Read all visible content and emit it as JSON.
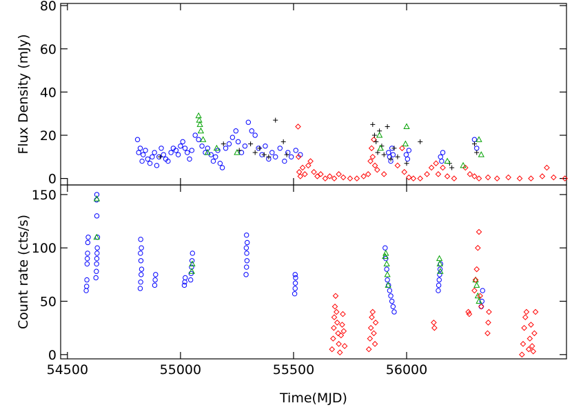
{
  "chart_data": [
    {
      "type": "scatter",
      "ylabel": "Flux Density (mJy)",
      "xlim": [
        54470,
        56707
      ],
      "ylim": [
        -3,
        81
      ],
      "yticks": [
        0,
        20,
        40,
        60,
        80
      ],
      "series": [
        {
          "color": "#0000ff",
          "marker": "circle",
          "x": [
            54810,
            54815,
            54822,
            54830,
            54835,
            54845,
            54855,
            54865,
            54875,
            54885,
            54895,
            54905,
            54915,
            54925,
            54935,
            54945,
            54958,
            54968,
            54980,
            54990,
            55000,
            55010,
            55020,
            55030,
            55040,
            55050,
            55065,
            55080,
            55095,
            55110,
            55120,
            55135,
            55145,
            55155,
            55165,
            55175,
            55185,
            55200,
            55215,
            55230,
            55245,
            55255,
            55270,
            55285,
            55300,
            55315,
            55330,
            55345,
            55360,
            55375,
            55390,
            55405,
            55420,
            55440,
            55460,
            55475,
            55490,
            55510,
            55530,
            55920,
            55925,
            55930,
            55935,
            55940,
            55998,
            56004,
            56010,
            56150,
            56155,
            56160,
            56300,
            56310
          ],
          "values": [
            18,
            12,
            14,
            8,
            11,
            13,
            9,
            7,
            10,
            12,
            6,
            10,
            14,
            11,
            9,
            8,
            12,
            14,
            13,
            11,
            15,
            17,
            14,
            12,
            9,
            13,
            20,
            18,
            15,
            12,
            14,
            11,
            8,
            10,
            13,
            7,
            5,
            14,
            16,
            19,
            22,
            17,
            12,
            15,
            26,
            22,
            20,
            14,
            11,
            15,
            9,
            12,
            10,
            14,
            8,
            12,
            10,
            13,
            11,
            12,
            10,
            8,
            14,
            11,
            11,
            9,
            13,
            10,
            8,
            12,
            18,
            14
          ]
        },
        {
          "color": "#ff0000",
          "marker": "diamond",
          "x": [
            55520,
            55522,
            55525,
            55530,
            55540,
            55550,
            55565,
            55575,
            55590,
            55605,
            55620,
            55640,
            55660,
            55680,
            55700,
            55720,
            55750,
            55780,
            55810,
            55830,
            55840,
            55845,
            55850,
            55855,
            55860,
            55870,
            55900,
            55960,
            55980,
            55990,
            56010,
            56030,
            56060,
            56090,
            56110,
            56130,
            56140,
            56160,
            56180,
            56210,
            56260,
            56280,
            56300,
            56320,
            56360,
            56400,
            56450,
            56500,
            56550,
            56600,
            56620,
            56650,
            56700
          ],
          "values": [
            24,
            10,
            3,
            1,
            5,
            2,
            6,
            8,
            3,
            1,
            2,
            0,
            1,
            0,
            2,
            0.5,
            0,
            0,
            1,
            2,
            8,
            14,
            10,
            18,
            6,
            4,
            2,
            6,
            14,
            3,
            0.5,
            0,
            0,
            2,
            5,
            7,
            2,
            5,
            1,
            0,
            5,
            2,
            1,
            0,
            0.5,
            0,
            0.5,
            0,
            0,
            1,
            5,
            0.5,
            0
          ]
        },
        {
          "color": "#000000",
          "marker": "plus",
          "x": [
            54910,
            55190,
            55260,
            55310,
            55330,
            55350,
            55370,
            55390,
            55420,
            55455,
            55470,
            55850,
            55858,
            55865,
            55872,
            55880,
            55890,
            55900,
            55915,
            55930,
            55945,
            55960,
            56000,
            56060,
            56190,
            56200,
            56300,
            56310
          ],
          "values": [
            10,
            16,
            13,
            16,
            12,
            14,
            11,
            10,
            27,
            17,
            11,
            25,
            20,
            17,
            12,
            22,
            15,
            11,
            24,
            9,
            14,
            10,
            7,
            17,
            7,
            5,
            16,
            12
          ]
        },
        {
          "color": "#00a000",
          "marker": "triangle",
          "x": [
            55080,
            55083,
            55086,
            55090,
            55100,
            55120,
            55160,
            55250,
            55880,
            55885,
            55995,
            56000,
            56180,
            56250,
            56320,
            56330
          ],
          "values": [
            29,
            27,
            25,
            22,
            18,
            12,
            14,
            12,
            20,
            14,
            16,
            24,
            8,
            6,
            18,
            11
          ]
        }
      ]
    },
    {
      "type": "scatter",
      "ylabel": "Count rate (cts/s)",
      "xlabel": "Time(MJD)",
      "xlim": [
        54470,
        56707
      ],
      "ylim": [
        -4,
        159
      ],
      "xticks": [
        54500,
        55000,
        55500,
        56000
      ],
      "yticks": [
        0,
        50,
        100,
        150
      ],
      "series": [
        {
          "color": "#0000ff",
          "marker": "circle",
          "x": [
            54583,
            54585,
            54586,
            54587,
            54588,
            54589,
            54590,
            54592,
            54626,
            54628,
            54629,
            54630,
            54631,
            54632,
            54633,
            54630,
            54629,
            54630,
            54822,
            54824,
            54826,
            54828,
            54825,
            54823,
            54827,
            54824,
            54886,
            54888,
            54890,
            55017,
            55019,
            55021,
            55045,
            55047,
            55049,
            55051,
            55053,
            55290,
            55292,
            55294,
            55293,
            55291,
            55295,
            55292,
            55505,
            55507,
            55508,
            55509,
            55507,
            55905,
            55908,
            55912,
            55915,
            55920,
            55925,
            55930,
            55935,
            55940,
            55945,
            56140,
            56142,
            56144,
            56146,
            56148,
            56150,
            56330,
            56333,
            56336
          ],
          "values": [
            60,
            64,
            70,
            85,
            90,
            95,
            105,
            110,
            72,
            78,
            85,
            90,
            95,
            100,
            110,
            130,
            145,
            150,
            62,
            68,
            75,
            80,
            88,
            95,
            100,
            108,
            65,
            70,
            75,
            65,
            68,
            72,
            70,
            76,
            82,
            88,
            95,
            75,
            82,
            88,
            95,
            100,
            105,
            112,
            57,
            62,
            67,
            72,
            75,
            100,
            90,
            80,
            70,
            65,
            60,
            55,
            50,
            45,
            40,
            60,
            65,
            70,
            75,
            80,
            85,
            45,
            50,
            60
          ]
        },
        {
          "color": "#00a000",
          "marker": "triangle",
          "x": [
            54629,
            54630,
            55050,
            55052,
            55905,
            55908,
            55912,
            55915,
            55918,
            56145,
            56147,
            56149,
            56305,
            56310,
            56315,
            56320
          ],
          "values": [
            110,
            146,
            78,
            85,
            92,
            95,
            85,
            75,
            65,
            90,
            85,
            78,
            70,
            65,
            55,
            50
          ]
        },
        {
          "color": "#ff0000",
          "marker": "diamond",
          "x": [
            55670,
            55675,
            55678,
            55680,
            55683,
            55686,
            55690,
            55693,
            55697,
            55700,
            55705,
            55710,
            55715,
            55718,
            55722,
            55726,
            55833,
            55838,
            55842,
            55846,
            55850,
            55855,
            55860,
            55863,
            56120,
            56123,
            56273,
            56277,
            56300,
            56305,
            56310,
            56315,
            56320,
            56325,
            56330,
            56358,
            56361,
            56364,
            56510,
            56515,
            56520,
            56525,
            56530,
            56540,
            56545,
            56550,
            56555,
            56560,
            56565,
            56570
          ],
          "values": [
            5,
            15,
            25,
            35,
            45,
            55,
            40,
            30,
            20,
            10,
            2,
            18,
            28,
            38,
            22,
            8,
            5,
            15,
            25,
            35,
            40,
            20,
            10,
            30,
            30,
            25,
            40,
            38,
            60,
            70,
            80,
            100,
            115,
            55,
            45,
            20,
            30,
            40,
            0,
            10,
            25,
            35,
            40,
            5,
            15,
            28,
            8,
            3,
            20,
            40
          ]
        }
      ]
    }
  ]
}
